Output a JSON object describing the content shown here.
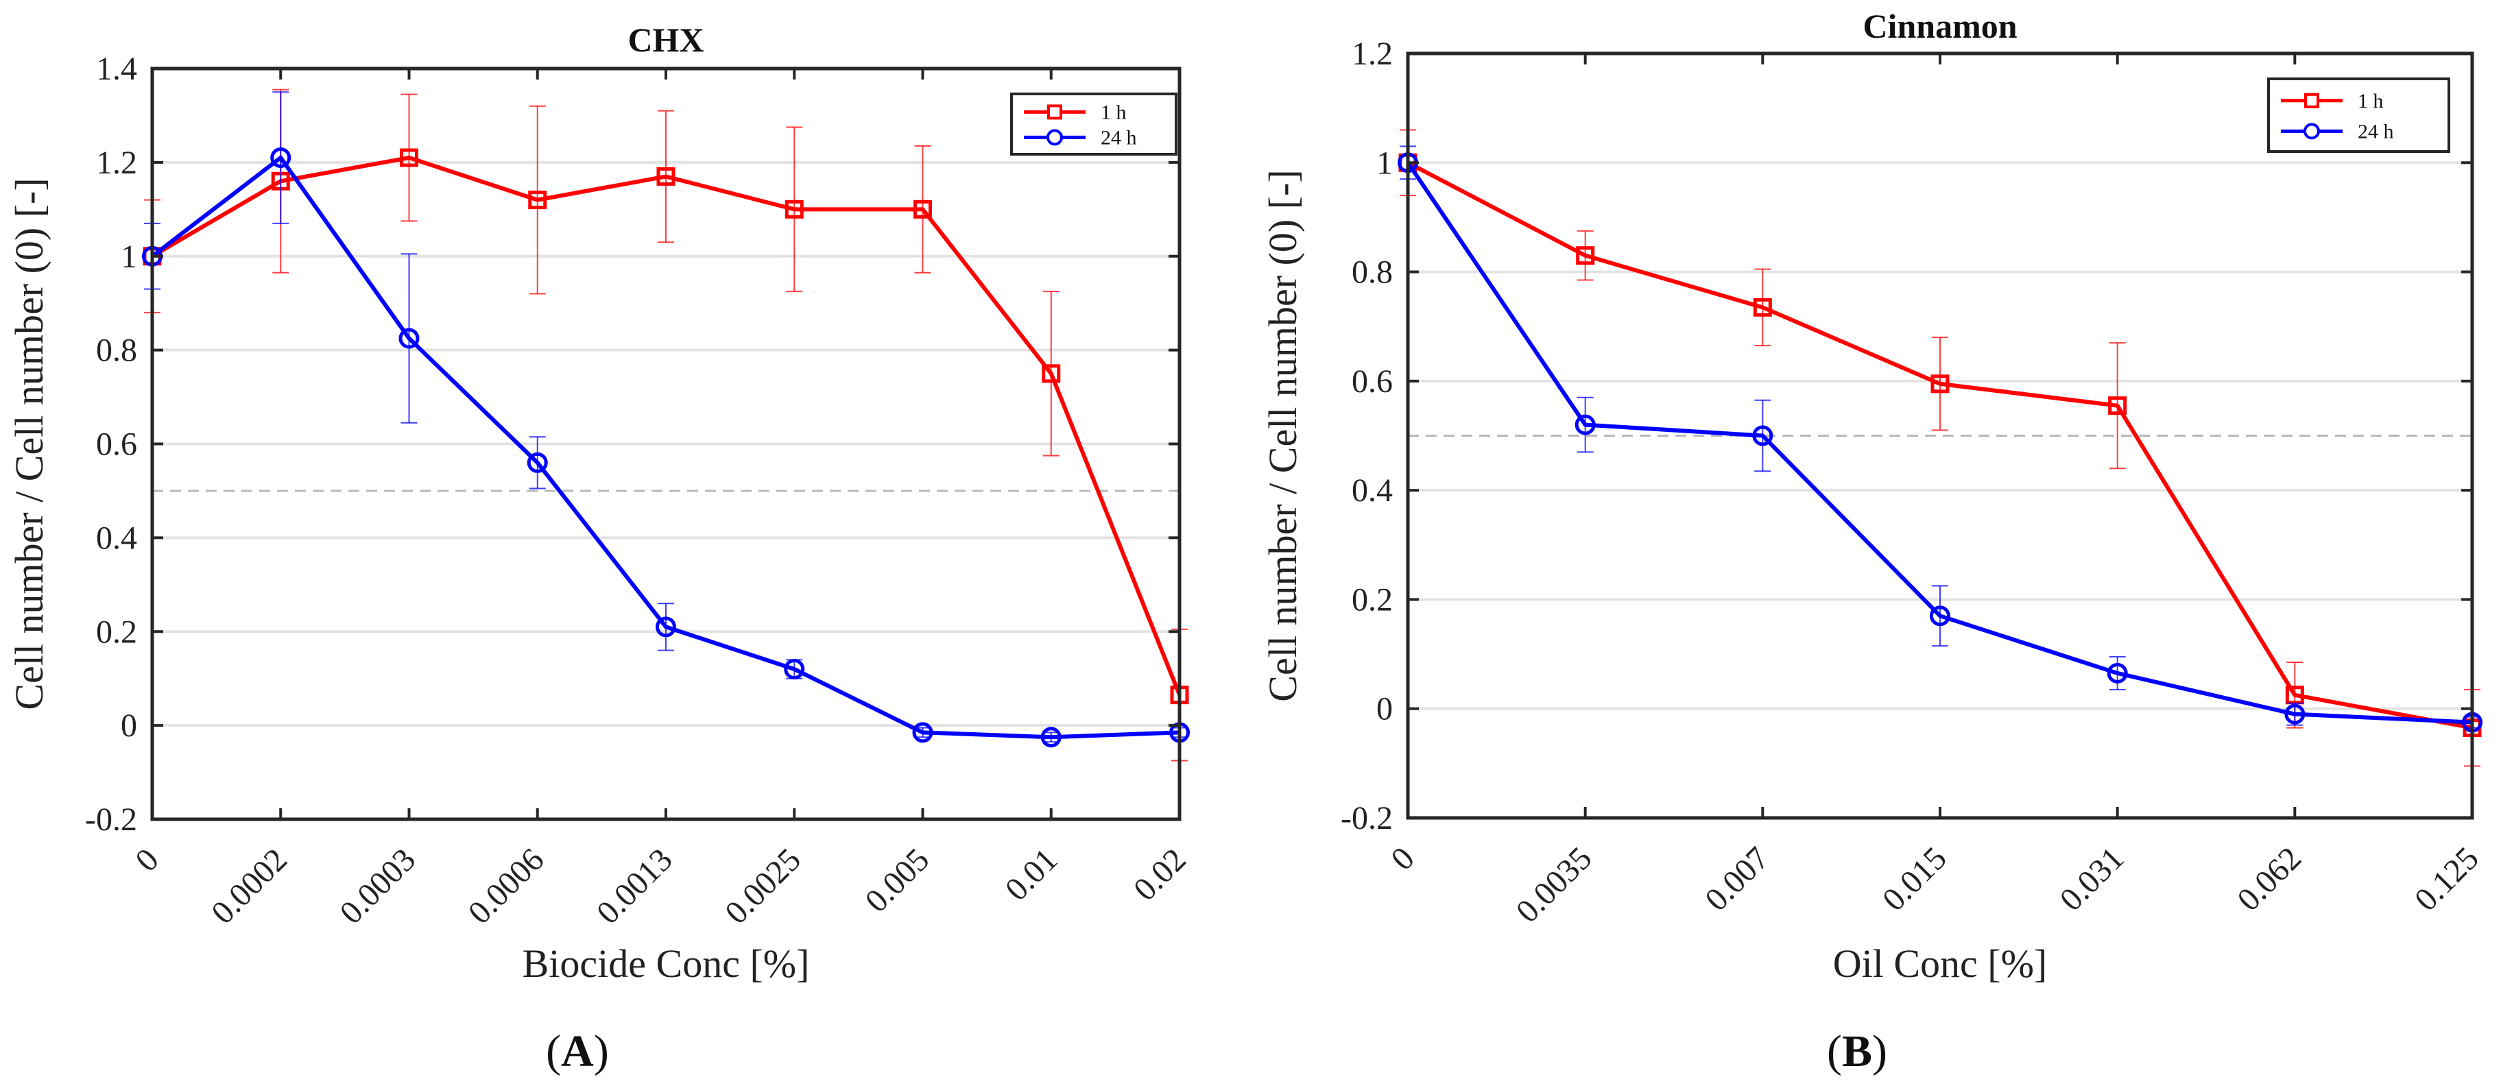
{
  "chart_data": [
    {
      "panel_label": "A",
      "type": "line",
      "title": "CHX",
      "xlabel": "Biocide Conc [%]",
      "ylabel": "Cell number / Cell number (0) [-]",
      "categories": [
        "0",
        "0.0002",
        "0.0003",
        "0.0006",
        "0.0013",
        "0.0025",
        "0.005",
        "0.01",
        "0.02"
      ],
      "ylim": [
        -0.2,
        1.4
      ],
      "yticks": [
        -0.2,
        0,
        0.2,
        0.4,
        0.6,
        0.8,
        1,
        1.2,
        1.4
      ],
      "ytick_labels": [
        "-0.2",
        "0",
        "0.2",
        "0.4",
        "0.6",
        "0.8",
        "1",
        "1.2",
        "1.4"
      ],
      "reference_line": 0.5,
      "grid": "horizontal",
      "legend_position": "top-right",
      "series": [
        {
          "name": "1 h",
          "color": "#ff0000",
          "marker": "square",
          "values": [
            1.0,
            1.16,
            1.21,
            1.12,
            1.17,
            1.1,
            1.1,
            0.75,
            0.065
          ],
          "errors": [
            0.12,
            0.195,
            0.135,
            0.2,
            0.14,
            0.175,
            0.135,
            0.175,
            0.14
          ]
        },
        {
          "name": "24 h",
          "color": "#0000ff",
          "marker": "circle",
          "values": [
            1.0,
            1.21,
            0.825,
            0.56,
            0.21,
            0.12,
            -0.015,
            -0.025,
            -0.015
          ],
          "errors": [
            0.07,
            0.14,
            0.18,
            0.055,
            0.05,
            0.02,
            0.01,
            0.01,
            0.01
          ]
        }
      ]
    },
    {
      "panel_label": "B",
      "type": "line",
      "title": "Cinnamon",
      "xlabel": "Oil Conc [%]",
      "ylabel": "Cell number / Cell number (0) [-]",
      "categories": [
        "0",
        "0.0035",
        "0.007",
        "0.015",
        "0.031",
        "0.062",
        "0.125"
      ],
      "ylim": [
        -0.2,
        1.2
      ],
      "yticks": [
        -0.2,
        0,
        0.2,
        0.4,
        0.6,
        0.8,
        1,
        1.2
      ],
      "ytick_labels": [
        "-0.2",
        "0",
        "0.2",
        "0.4",
        "0.6",
        "0.8",
        "1",
        "1.2"
      ],
      "reference_line": 0.5,
      "grid": "horizontal",
      "legend_position": "top-right",
      "series": [
        {
          "name": "1 h",
          "color": "#ff0000",
          "marker": "square",
          "values": [
            1.0,
            0.83,
            0.735,
            0.595,
            0.555,
            0.025,
            -0.035
          ],
          "errors": [
            0.06,
            0.045,
            0.07,
            0.085,
            0.115,
            0.06,
            0.07
          ]
        },
        {
          "name": "24 h",
          "color": "#0000ff",
          "marker": "circle",
          "values": [
            1.0,
            0.52,
            0.5,
            0.17,
            0.065,
            -0.01,
            -0.025
          ],
          "errors": [
            0.03,
            0.05,
            0.065,
            0.055,
            0.03,
            0.02,
            0.01
          ]
        }
      ]
    }
  ]
}
